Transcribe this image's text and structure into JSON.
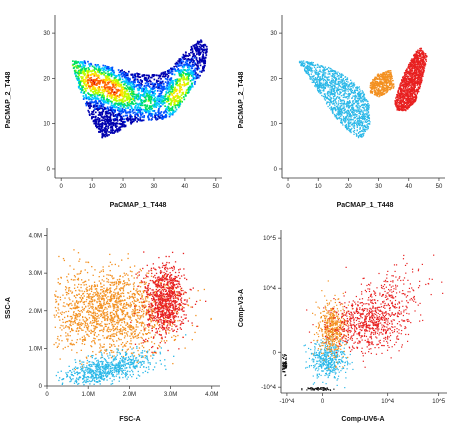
{
  "chart_data": [
    {
      "type": "scatter",
      "title": "",
      "xlabel": "PaCMAP_1_T448",
      "ylabel": "PaCMAP_2_T448",
      "x_ticks": [
        "0",
        "10",
        "20",
        "30",
        "40",
        "50"
      ],
      "y_ticks": [
        "0",
        "10",
        "20",
        "30"
      ],
      "xlim": [
        -2,
        52
      ],
      "ylim": [
        -2,
        34
      ],
      "coloring": "density (pseudocolor: blue-green-yellow-red)",
      "density_ramp": [
        "#0000b0",
        "#0050ff",
        "#00c8ff",
        "#00e060",
        "#b8ff00",
        "#ffe000",
        "#ff6000",
        "#d00000"
      ],
      "series": [
        {
          "outline": [
            [
              3,
              24
            ],
            [
              8,
              24
            ],
            [
              14,
              23
            ],
            [
              20,
              22
            ],
            [
              26,
              21
            ],
            [
              31,
              21
            ],
            [
              36,
              23
            ],
            [
              40,
              26
            ],
            [
              43,
              28
            ],
            [
              45,
              29
            ],
            [
              47,
              27
            ],
            [
              46,
              22
            ],
            [
              42,
              18
            ],
            [
              39,
              15
            ],
            [
              36,
              12
            ],
            [
              32,
              11
            ],
            [
              27,
              11
            ],
            [
              22,
              10
            ],
            [
              17,
              8
            ],
            [
              13,
              7
            ],
            [
              9,
              12
            ],
            [
              6,
              17
            ],
            [
              4,
              21
            ]
          ],
          "hotspots": [
            [
              4,
              23
            ],
            [
              8,
              19
            ],
            [
              10,
              20
            ],
            [
              13,
              19
            ],
            [
              16,
              18
            ],
            [
              18,
              17
            ],
            [
              22,
              16
            ],
            [
              28,
              15
            ],
            [
              35,
              15
            ],
            [
              38,
              17
            ],
            [
              40,
              20
            ]
          ]
        }
      ]
    },
    {
      "type": "scatter",
      "title": "",
      "xlabel": "PaCMAP_1_T448",
      "ylabel": "PaCMAP_2_T448",
      "x_ticks": [
        "0",
        "10",
        "20",
        "30",
        "40",
        "50"
      ],
      "y_ticks": [
        "0",
        "10",
        "20",
        "30"
      ],
      "xlim": [
        -2,
        52
      ],
      "ylim": [
        -2,
        34
      ],
      "series": [
        {
          "color": "#2bb8e8",
          "outline": [
            [
              3,
              24
            ],
            [
              6,
              24
            ],
            [
              12,
              23
            ],
            [
              18,
              21
            ],
            [
              24,
              18
            ],
            [
              27,
              14
            ],
            [
              27,
              10
            ],
            [
              25,
              7
            ],
            [
              23,
              7
            ],
            [
              19,
              9
            ],
            [
              15,
              12
            ],
            [
              11,
              16
            ],
            [
              7,
              20
            ]
          ]
        },
        {
          "color": "#f39020",
          "outline": [
            [
              27,
              19
            ],
            [
              29,
              21
            ],
            [
              34,
              22
            ],
            [
              35,
              18
            ],
            [
              30,
              16
            ],
            [
              27,
              17
            ]
          ]
        },
        {
          "color": "#e82020",
          "outline": [
            [
              36,
              17
            ],
            [
              38,
              21
            ],
            [
              42,
              26
            ],
            [
              44,
              27
            ],
            [
              46,
              25
            ],
            [
              44,
              19
            ],
            [
              42,
              15
            ],
            [
              39,
              13
            ],
            [
              36,
              13
            ],
            [
              35,
              15
            ]
          ]
        }
      ]
    },
    {
      "type": "scatter",
      "title": "",
      "xlabel": "FSC-A",
      "ylabel": "SSC-A",
      "x_ticks": [
        "0",
        "1.0M",
        "2.0M",
        "3.0M",
        "4.0M"
      ],
      "y_ticks": [
        "0",
        "1.0M",
        "2.0M",
        "3.0M",
        "4.0M"
      ],
      "xlim": [
        0,
        4.2
      ],
      "ylim": [
        0,
        4.2
      ],
      "units": "millions",
      "series": [
        {
          "color": "#f39020",
          "center": [
            1.5,
            2.0
          ],
          "spread": [
            0.75,
            0.55
          ]
        },
        {
          "color": "#2bb8e8",
          "center": [
            1.4,
            0.45
          ],
          "spread": [
            0.55,
            0.18
          ]
        },
        {
          "color": "#e82020",
          "center": [
            2.85,
            2.3
          ],
          "spread": [
            0.25,
            0.45
          ]
        }
      ]
    },
    {
      "type": "scatter",
      "title": "",
      "xlabel": "Comp-UV6-A",
      "ylabel": "Comp-V3-A",
      "x_ticks": [
        "-10^4",
        "0",
        "10^4",
        "10^5"
      ],
      "y_ticks": [
        "-10^4",
        "0",
        "10^4",
        "10^5"
      ],
      "scale": "biexponential (logicle)",
      "series": [
        {
          "color": "#2bb8e8",
          "center": [
            0.05,
            -0.05
          ],
          "spread": [
            0.08,
            0.08
          ]
        },
        {
          "color": "#f39020",
          "center": [
            0.08,
            0.2
          ],
          "spread": [
            0.06,
            0.12
          ]
        },
        {
          "color": "#e82020",
          "center": [
            0.3,
            0.15
          ],
          "spread": [
            0.15,
            0.1
          ]
        }
      ]
    }
  ]
}
